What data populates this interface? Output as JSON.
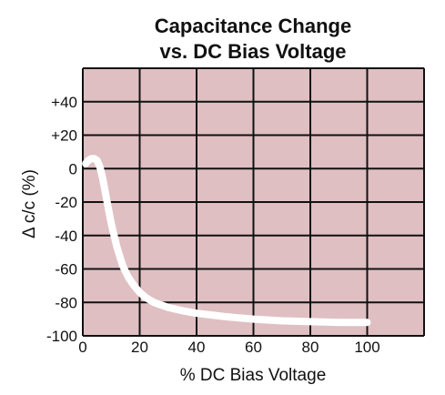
{
  "chart_data": {
    "type": "line",
    "title_line1": "Capacitance Change",
    "title_line2": "vs. DC Bias Voltage",
    "xlabel": "% DC Bias Voltage",
    "ylabel": "Δ c/c (%)",
    "xlim": [
      0,
      120
    ],
    "ylim": [
      -100,
      60
    ],
    "x_ticks": [
      0,
      20,
      40,
      60,
      80,
      100
    ],
    "x_tick_labels": [
      "0",
      "20",
      "40",
      "60",
      "80",
      "100"
    ],
    "y_ticks": [
      40,
      20,
      0,
      -20,
      -40,
      -60,
      -80,
      -100
    ],
    "y_tick_labels": [
      "+40",
      "+20",
      "0",
      "-20",
      "-40",
      "-60",
      "-80",
      "-100"
    ],
    "grid": true,
    "plot_background": "#dfbfc2",
    "grid_color": "#111111",
    "line_color": "#ffffff",
    "series": [
      {
        "x": [
          1,
          2,
          3,
          4,
          5,
          6,
          7,
          8,
          9,
          10,
          12,
          14,
          16,
          18,
          20,
          22,
          25,
          30,
          35,
          40,
          50,
          60,
          70,
          80,
          90,
          100
        ],
        "y": [
          3,
          5,
          6,
          6,
          5,
          1,
          -6,
          -15,
          -24,
          -33,
          -47,
          -58,
          -65,
          -70,
          -74,
          -77,
          -80,
          -83,
          -85,
          -86.5,
          -88.5,
          -90,
          -91,
          -91.5,
          -92,
          -92
        ]
      }
    ]
  }
}
